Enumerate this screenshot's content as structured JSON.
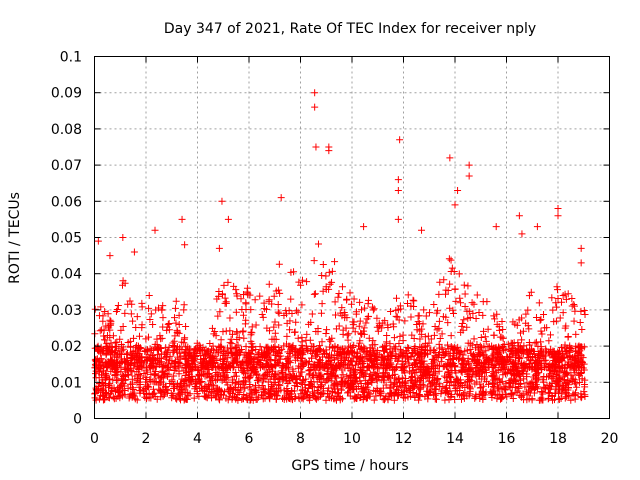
{
  "chart_data": {
    "type": "scatter",
    "title": "Day 347 of 2021, Rate Of TEC Index for receiver nply",
    "xlabel": "GPS time / hours",
    "ylabel": "ROTI / TECUs",
    "xlim": [
      0,
      20
    ],
    "ylim": [
      0,
      0.1
    ],
    "xticks": [
      "0",
      "2",
      "4",
      "6",
      "8",
      "10",
      "12",
      "14",
      "16",
      "18",
      "20"
    ],
    "yticks": [
      "0",
      "0.01",
      "0.02",
      "0.03",
      "0.04",
      "0.05",
      "0.06",
      "0.07",
      "0.08",
      "0.09",
      "0.1"
    ],
    "grid": true,
    "marker": "+",
    "series": [
      {
        "name": "ROTI",
        "color": "#ff0000",
        "data_range_x": [
          0,
          19.1
        ],
        "typical_range_y": [
          0.005,
          0.02
        ],
        "outliers": [
          {
            "x": 8.55,
            "y": 0.09
          },
          {
            "x": 8.55,
            "y": 0.086
          },
          {
            "x": 8.6,
            "y": 0.075
          },
          {
            "x": 9.1,
            "y": 0.075
          },
          {
            "x": 9.1,
            "y": 0.074
          },
          {
            "x": 11.85,
            "y": 0.077
          },
          {
            "x": 13.8,
            "y": 0.072
          },
          {
            "x": 14.55,
            "y": 0.07
          },
          {
            "x": 14.55,
            "y": 0.067
          },
          {
            "x": 14.1,
            "y": 0.063
          },
          {
            "x": 14.0,
            "y": 0.059
          },
          {
            "x": 11.8,
            "y": 0.066
          },
          {
            "x": 11.8,
            "y": 0.063
          },
          {
            "x": 7.25,
            "y": 0.061
          },
          {
            "x": 4.95,
            "y": 0.06
          },
          {
            "x": 18.0,
            "y": 0.058
          },
          {
            "x": 18.0,
            "y": 0.056
          },
          {
            "x": 16.5,
            "y": 0.056
          },
          {
            "x": 3.4,
            "y": 0.055
          },
          {
            "x": 11.8,
            "y": 0.055
          },
          {
            "x": 5.2,
            "y": 0.055
          },
          {
            "x": 17.2,
            "y": 0.053
          },
          {
            "x": 2.35,
            "y": 0.052
          },
          {
            "x": 0.15,
            "y": 0.049
          },
          {
            "x": 1.1,
            "y": 0.05
          },
          {
            "x": 0.6,
            "y": 0.045
          },
          {
            "x": 1.55,
            "y": 0.046
          },
          {
            "x": 3.5,
            "y": 0.048
          },
          {
            "x": 4.85,
            "y": 0.047
          },
          {
            "x": 10.45,
            "y": 0.053
          },
          {
            "x": 12.7,
            "y": 0.052
          },
          {
            "x": 15.6,
            "y": 0.053
          },
          {
            "x": 16.6,
            "y": 0.051
          },
          {
            "x": 18.9,
            "y": 0.047
          },
          {
            "x": 18.9,
            "y": 0.043
          }
        ]
      }
    ]
  }
}
